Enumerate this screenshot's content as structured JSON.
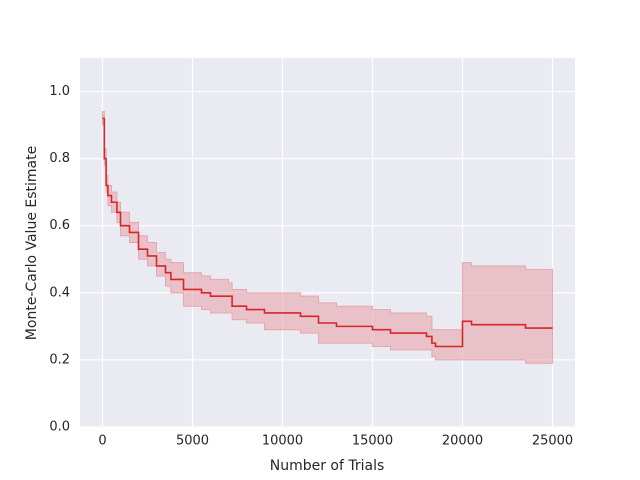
{
  "chart_data": {
    "type": "line",
    "x_label": "Number of Trials",
    "y_label": "Monte-Carlo Value Estimate",
    "x": [
      0,
      100,
      200,
      300,
      500,
      800,
      1000,
      1500,
      2000,
      2500,
      3000,
      3500,
      3800,
      4500,
      5500,
      6000,
      7000,
      7200,
      8000,
      9000,
      11000,
      12000,
      13000,
      15000,
      16000,
      18000,
      18300,
      18500,
      19900,
      20000,
      20500,
      23500,
      25000
    ],
    "values": [
      0.92,
      0.8,
      0.72,
      0.69,
      0.67,
      0.64,
      0.6,
      0.58,
      0.53,
      0.51,
      0.48,
      0.46,
      0.44,
      0.41,
      0.4,
      0.39,
      0.39,
      0.36,
      0.35,
      0.34,
      0.33,
      0.31,
      0.3,
      0.29,
      0.28,
      0.27,
      0.25,
      0.24,
      0.24,
      0.315,
      0.305,
      0.295,
      0.295
    ],
    "lower": [
      0.9,
      0.78,
      0.7,
      0.66,
      0.64,
      0.61,
      0.57,
      0.55,
      0.5,
      0.48,
      0.45,
      0.42,
      0.4,
      0.36,
      0.35,
      0.34,
      0.34,
      0.32,
      0.31,
      0.29,
      0.28,
      0.25,
      0.25,
      0.24,
      0.23,
      0.23,
      0.21,
      0.2,
      0.2,
      0.2,
      0.2,
      0.19,
      0.19
    ],
    "upper": [
      0.94,
      0.83,
      0.75,
      0.72,
      0.7,
      0.67,
      0.64,
      0.61,
      0.57,
      0.55,
      0.52,
      0.5,
      0.49,
      0.46,
      0.45,
      0.44,
      0.43,
      0.41,
      0.4,
      0.4,
      0.39,
      0.37,
      0.36,
      0.35,
      0.34,
      0.33,
      0.29,
      0.29,
      0.29,
      0.49,
      0.48,
      0.47,
      0.47
    ],
    "color": "#d62728",
    "band_color": "#e8a6ad",
    "drawstyle": "steps-post",
    "xlim": [
      -1250,
      26250
    ],
    "ylim": [
      0,
      1.1
    ],
    "xticks": [
      0,
      5000,
      10000,
      15000,
      20000,
      25000
    ],
    "yticks": [
      {
        "value": 0,
        "label": "0.0"
      },
      0.2,
      0.4,
      0.6,
      0.8,
      {
        "value": 1,
        "label": "1.0"
      }
    ],
    "grid": true
  }
}
